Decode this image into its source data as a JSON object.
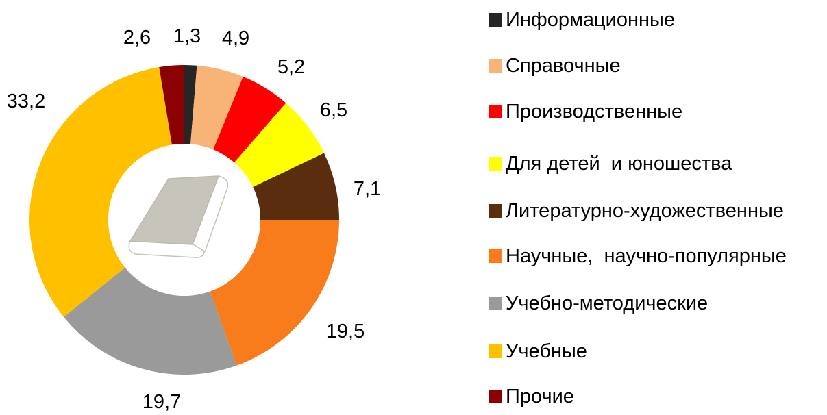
{
  "chart_data": {
    "type": "pie",
    "subtype": "donut",
    "title": "",
    "categories": [
      "Информационные",
      "Справочные",
      "Производственные",
      "Для детей  и юношества",
      "Литературно-художественные",
      "Научные,  научно-популярные",
      "Учебно-методические",
      "Учебные",
      "Прочие"
    ],
    "values": [
      1.3,
      4.9,
      5.2,
      6.5,
      7.1,
      19.5,
      19.7,
      33.2,
      2.6
    ],
    "value_labels": [
      "1,3",
      "4,9",
      "5,2",
      "6,5",
      "7,1",
      "19,5",
      "19,7",
      "33,2",
      "2,6"
    ],
    "colors": [
      "#262626",
      "#F8B476",
      "#FF0000",
      "#FFFF00",
      "#5B2D0F",
      "#F87C1B",
      "#9A9A9A",
      "#FFC000",
      "#8B0000"
    ],
    "start_angle_deg": 0,
    "direction": "clockwise",
    "hole_ratio": 0.49,
    "legend_position": "right",
    "grid": false,
    "center_image": "book-clipart",
    "label_color": "#000000"
  }
}
